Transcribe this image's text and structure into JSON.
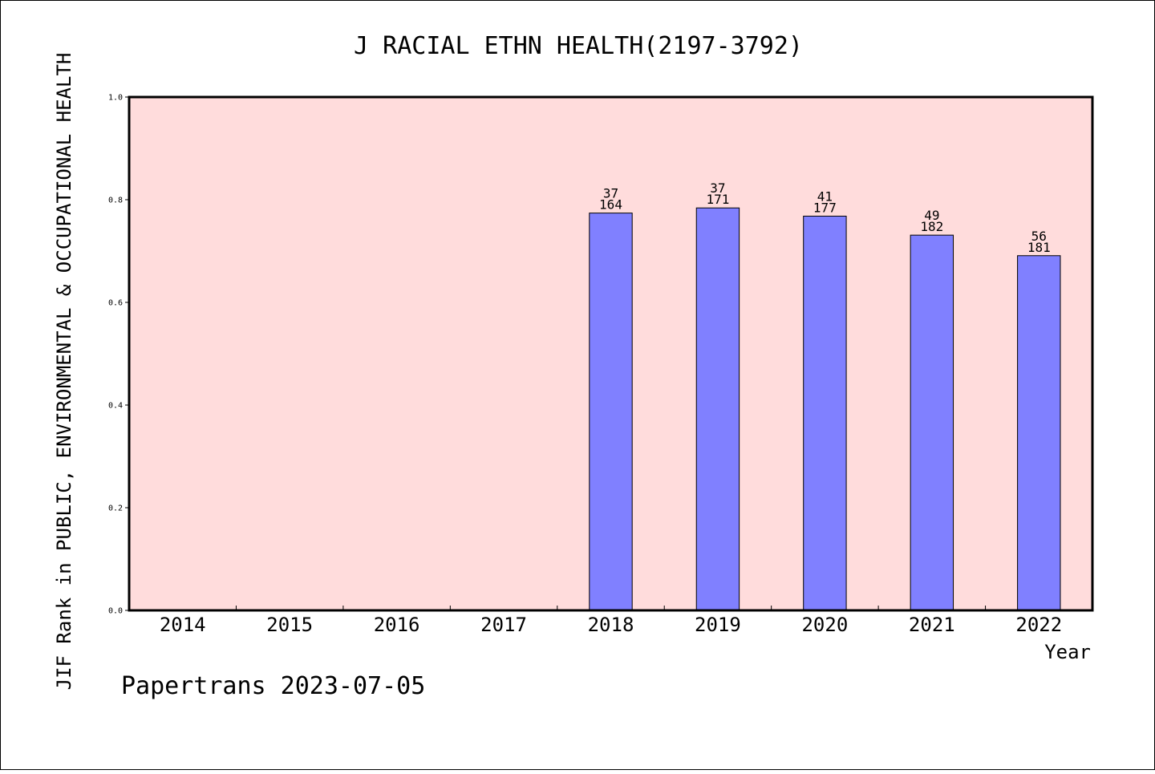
{
  "chart_data": {
    "type": "bar",
    "title": "J RACIAL ETHN HEALTH(2197-3792)",
    "xlabel": "Year",
    "ylabel": "JIF Rank in PUBLIC, ENVIRONMENTAL & OCCUPATIONAL HEALTH",
    "categories": [
      "2014",
      "2015",
      "2016",
      "2017",
      "2018",
      "2019",
      "2020",
      "2021",
      "2022"
    ],
    "values": [
      null,
      null,
      null,
      null,
      0.774,
      0.784,
      0.768,
      0.731,
      0.691
    ],
    "ranks": [
      null,
      null,
      null,
      null,
      "37",
      "37",
      "41",
      "49",
      "56"
    ],
    "totals": [
      null,
      null,
      null,
      null,
      "164",
      "171",
      "177",
      "182",
      "181"
    ],
    "ylim": [
      0,
      1
    ],
    "yticks": [
      0,
      0.2,
      0.4,
      0.6,
      0.8,
      1.0
    ],
    "ytick_labels": [
      "0.0",
      "0.2",
      "0.4",
      "0.6",
      "0.8",
      "1.0"
    ],
    "grid": false,
    "legend": "none",
    "colors": {
      "plot_background": "#ffdcdc",
      "bar_fill": "#8080ff",
      "bar_stroke": "#000000",
      "axis": "#000000"
    }
  },
  "footer": {
    "watermark": "Papertrans 2023-07-05"
  }
}
